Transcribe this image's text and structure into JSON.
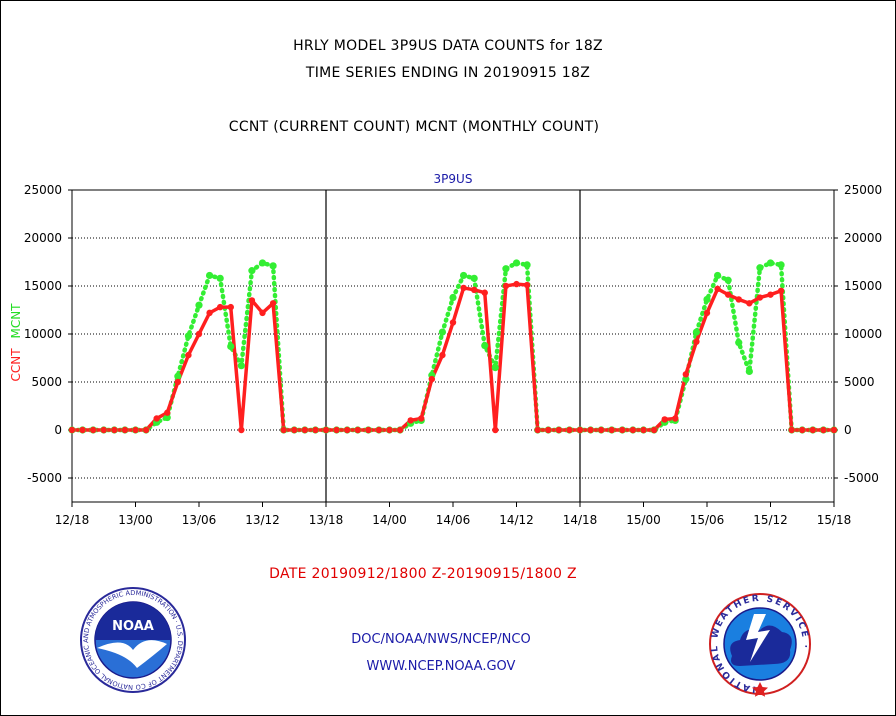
{
  "header": {
    "title_line1": "HRLY MODEL 3P9US DATA COUNTS for 18Z",
    "title_line2": "TIME SERIES ENDING IN 20190915 18Z",
    "subtitle": "CCNT (CURRENT COUNT) MCNT (MONTHLY COUNT)"
  },
  "footer": {
    "date_range": "DATE 20190912/1800 Z-20190915/1800 Z",
    "credit": "DOC/NOAA/NWS/NCEP/NCO",
    "url": "WWW.NCEP.NOAA.GOV"
  },
  "logos": {
    "noaa_text": "NOAA",
    "noaa_ring": "NATIONAL OCEANIC AND ATMOSPHERIC ADMINISTRATION · U.S. DEPARTMENT OF COMMERCE ·",
    "nws_ring": "NATIONAL WEATHER SERVICE ·"
  },
  "chart_data": {
    "type": "line",
    "title": "3P9US",
    "ylabel_series": [
      "CCNT",
      "MCNT"
    ],
    "ylim": [
      -7500,
      25000
    ],
    "yticks": [
      -5000,
      0,
      5000,
      10000,
      15000,
      20000,
      25000
    ],
    "xlim": [
      0,
      72
    ],
    "xticks": [
      0,
      6,
      12,
      18,
      24,
      30,
      36,
      42,
      48,
      54,
      60,
      66,
      72
    ],
    "xtick_labels": [
      "12/18",
      "13/00",
      "13/06",
      "13/12",
      "13/18",
      "14/00",
      "14/06",
      "14/12",
      "14/18",
      "15/00",
      "15/06",
      "15/12",
      "15/18"
    ],
    "day_dividers": [
      24,
      48
    ],
    "grid": true,
    "colors": {
      "CCNT": "#ff1f1f",
      "MCNT": "#33ee33"
    },
    "series": [
      {
        "name": "CCNT",
        "values": [
          0,
          0,
          0,
          0,
          0,
          0,
          0,
          0,
          1200,
          1800,
          5000,
          7800,
          10000,
          12200,
          12800,
          12800,
          0,
          13500,
          12200,
          13200,
          0,
          0,
          0,
          0,
          0,
          0,
          0,
          0,
          0,
          0,
          0,
          0,
          1000,
          1200,
          5300,
          7800,
          11200,
          14800,
          14600,
          14300,
          0,
          15000,
          15200,
          15100,
          0,
          0,
          0,
          0,
          0,
          0,
          0,
          0,
          0,
          0,
          0,
          0,
          1100,
          1200,
          5800,
          9200,
          12200,
          14700,
          14100,
          13600,
          13200,
          13800,
          14100,
          14500,
          0,
          0,
          0,
          0,
          0
        ]
      },
      {
        "name": "MCNT",
        "values": [
          0,
          0,
          0,
          0,
          0,
          0,
          0,
          0,
          800,
          1300,
          5600,
          9800,
          13000,
          16100,
          15800,
          8700,
          6700,
          16600,
          17400,
          17100,
          0,
          0,
          0,
          0,
          0,
          0,
          0,
          0,
          0,
          0,
          0,
          0,
          700,
          1000,
          5700,
          10200,
          13800,
          16100,
          15800,
          8800,
          6500,
          16800,
          17400,
          17200,
          0,
          0,
          0,
          0,
          0,
          0,
          0,
          0,
          0,
          0,
          0,
          0,
          800,
          1000,
          5300,
          10200,
          13600,
          16100,
          15600,
          9100,
          6100,
          16900,
          17400,
          17200,
          0,
          0,
          0,
          0,
          0
        ]
      }
    ]
  }
}
